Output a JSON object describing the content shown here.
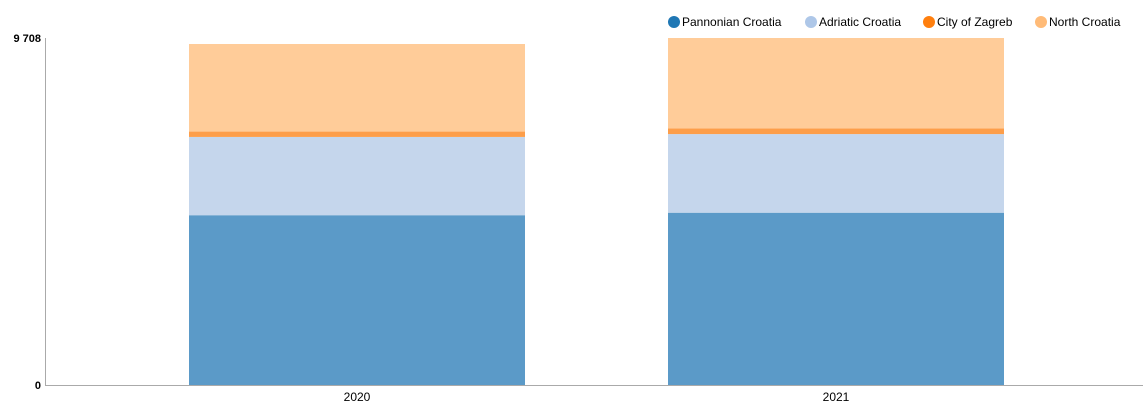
{
  "chart_data": {
    "type": "bar",
    "stacked": true,
    "categories": [
      "2020",
      "2021"
    ],
    "series": [
      {
        "name": "Pannonian Croatia",
        "color": "#5b9ac8",
        "legend_color": "#1f77b4",
        "values": [
          4750,
          4820
        ]
      },
      {
        "name": "Adriatic Croatia",
        "color": "#c5d6ec",
        "legend_color": "#aec7e8",
        "values": [
          2190,
          2200
        ]
      },
      {
        "name": "City of Zagreb",
        "color": "#fd9e4a",
        "legend_color": "#ff7f0e",
        "values": [
          150,
          160
        ]
      },
      {
        "name": "North Croatia",
        "color": "#ffcc99",
        "legend_color": "#ffbb78",
        "values": [
          2450,
          2528
        ]
      }
    ],
    "y_ticks": [
      "0",
      "9 708"
    ],
    "ylim": [
      0,
      9708
    ],
    "legend_position": "top-right",
    "grid": false
  }
}
